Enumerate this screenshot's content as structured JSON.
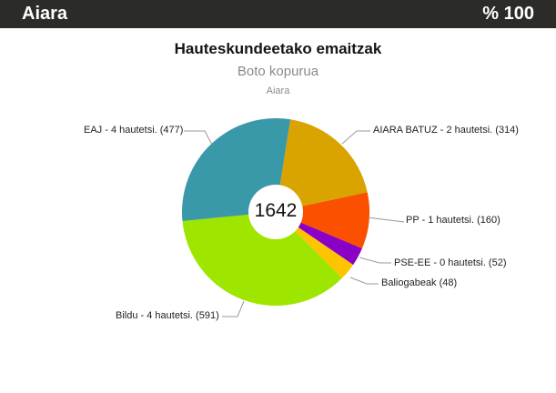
{
  "header": {
    "title": "Aiara",
    "percentage": "% 100"
  },
  "chart_data": {
    "type": "pie",
    "title": "Hauteskundeetako emaitzak",
    "subtitle": "Boto kopurua",
    "region": "Aiara",
    "total": "1642",
    "start_angle": 9,
    "donut_hole_color": "#ffffff",
    "leader_line_color": "#999999",
    "slices": [
      {
        "id": "aiara-batuz",
        "label": "AIARA BATUZ - 2 hautetsi. (314)",
        "party": "AIARA BATUZ",
        "seats": 2,
        "votes": 314,
        "color": "#d9a300"
      },
      {
        "id": "pp",
        "label": "PP - 1 hautetsi. (160)",
        "party": "PP",
        "seats": 1,
        "votes": 160,
        "color": "#fa5000"
      },
      {
        "id": "pse-ee",
        "label": "PSE-EE - 0 hautetsi. (52)",
        "party": "PSE-EE",
        "seats": 0,
        "votes": 52,
        "color": "#8a00c4"
      },
      {
        "id": "baliogabeak",
        "label": "Baliogabeak (48)",
        "party": "Baliogabeak",
        "seats": null,
        "votes": 48,
        "color": "#ffc400"
      },
      {
        "id": "bildu",
        "label": "Bildu - 4 hautetsi. (591)",
        "party": "Bildu",
        "seats": 4,
        "votes": 591,
        "color": "#9ee500"
      },
      {
        "id": "eaj",
        "label": "EAJ - 4 hautetsi. (477)",
        "party": "EAJ",
        "seats": 4,
        "votes": 477,
        "color": "#3999a8"
      }
    ]
  }
}
